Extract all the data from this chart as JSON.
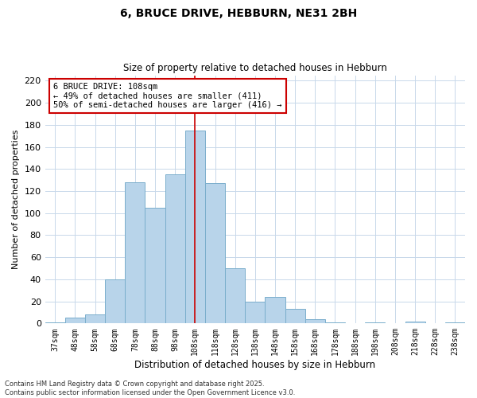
{
  "title": "6, BRUCE DRIVE, HEBBURN, NE31 2BH",
  "subtitle": "Size of property relative to detached houses in Hebburn",
  "xlabel": "Distribution of detached houses by size in Hebburn",
  "ylabel": "Number of detached properties",
  "bar_labels": [
    "37sqm",
    "48sqm",
    "58sqm",
    "68sqm",
    "78sqm",
    "88sqm",
    "98sqm",
    "108sqm",
    "118sqm",
    "128sqm",
    "138sqm",
    "148sqm",
    "158sqm",
    "168sqm",
    "178sqm",
    "188sqm",
    "198sqm",
    "208sqm",
    "218sqm",
    "228sqm",
    "238sqm"
  ],
  "bar_values": [
    1,
    5,
    8,
    40,
    128,
    105,
    135,
    175,
    127,
    50,
    20,
    24,
    13,
    4,
    1,
    0,
    1,
    0,
    2,
    0,
    1
  ],
  "bar_color": "#b8d4ea",
  "bar_edge_color": "#7aaecc",
  "vline_x": 7,
  "vline_color": "#cc0000",
  "annotation_text": "6 BRUCE DRIVE: 108sqm\n← 49% of detached houses are smaller (411)\n50% of semi-detached houses are larger (416) →",
  "annotation_box_facecolor": "#ffffff",
  "annotation_box_edgecolor": "#cc0000",
  "ylim": [
    0,
    225
  ],
  "yticks": [
    0,
    20,
    40,
    60,
    80,
    100,
    120,
    140,
    160,
    180,
    200,
    220
  ],
  "footnote": "Contains HM Land Registry data © Crown copyright and database right 2025.\nContains public sector information licensed under the Open Government Licence v3.0.",
  "background_color": "#ffffff",
  "grid_color": "#c8d8ea"
}
